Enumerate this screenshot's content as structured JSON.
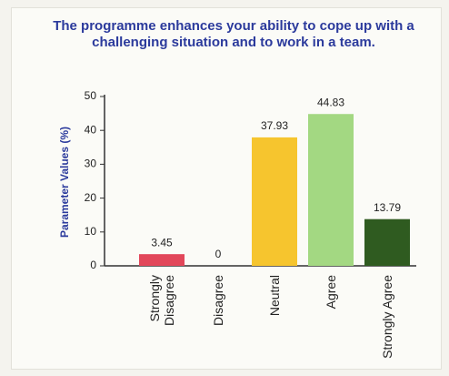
{
  "chart_data": {
    "type": "bar",
    "title": "The programme enhances your ability to cope up with a challenging situation and to work in a team.",
    "y_label": "Parameter Values (%)",
    "categories": [
      "Strongly Disagree",
      "Disagree",
      "Neutral",
      "Agree",
      "Strongly Agree"
    ],
    "values": [
      3.45,
      0,
      37.93,
      44.83,
      13.79
    ],
    "colors": [
      "#e2475a",
      "#8a8a8a",
      "#f6c52e",
      "#a3d882",
      "#2f5b20"
    ],
    "ylim": [
      0,
      50
    ],
    "yticks": [
      0,
      10,
      20,
      30,
      40,
      50
    ],
    "grid": false
  }
}
